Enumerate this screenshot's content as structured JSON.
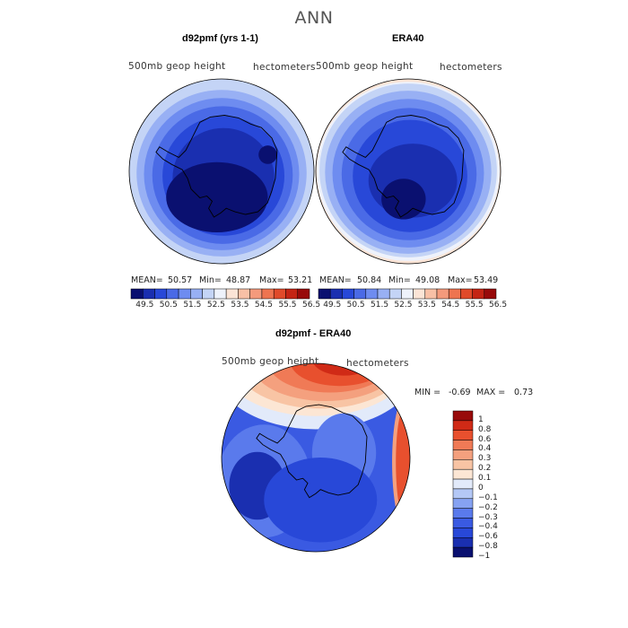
{
  "page": {
    "title": "ANN"
  },
  "chart_data": [
    {
      "type": "heatmap",
      "title": "d92pmf (yrs 1-1)",
      "left_label": "500mb geop height",
      "right_label": "hectometers",
      "stats": {
        "mean_label": "MEAN=",
        "mean": "50.57",
        "min_label": "Min=",
        "min": "48.87",
        "max_label": "Max=",
        "max": "53.21"
      },
      "colorbar_ticks": [
        "49.5",
        "50.5",
        "51.5",
        "52.5",
        "53.5",
        "54.5",
        "55.5",
        "56.5"
      ]
    },
    {
      "type": "heatmap",
      "title": "ERA40",
      "left_label": "500mb geop height",
      "right_label": "hectometers",
      "stats": {
        "mean_label": "MEAN=",
        "mean": "50.84",
        "min_label": "Min=",
        "min": "49.08",
        "max_label": "Max=",
        "max": "53.49"
      },
      "colorbar_ticks": [
        "49.5",
        "50.5",
        "51.5",
        "52.5",
        "53.5",
        "54.5",
        "55.5",
        "56.5"
      ]
    },
    {
      "type": "heatmap",
      "title": "d92pmf - ERA40",
      "left_label": "500mb geop height",
      "right_label": "hectometers",
      "stats": {
        "min_label": "MIN =",
        "min": "-0.69",
        "max_label": "MAX =",
        "max": "0.73"
      },
      "colorbar_ticks": [
        "1",
        "0.8",
        "0.6",
        "0.4",
        "0.3",
        "0.2",
        "0.1",
        "0",
        "−0.1",
        "−0.2",
        "−0.3",
        "−0.4",
        "−0.6",
        "−0.8",
        "−1"
      ]
    }
  ],
  "palette": {
    "abs_scale": [
      "#0a1070",
      "#1a2fb0",
      "#2848d8",
      "#4a6ae6",
      "#6e8cf0",
      "#98b0f4",
      "#c4d4f6",
      "#eef2fb",
      "#fbe4d6",
      "#f8c0a6",
      "#f49a7c",
      "#ee7450",
      "#e04a2a",
      "#c42414",
      "#980a0a"
    ],
    "diff_scale": [
      "#0a1070",
      "#1a2fb0",
      "#2848d8",
      "#3a5ae2",
      "#5a7aec",
      "#86a2f2",
      "#b4c8f6",
      "#e2eafa",
      "#fce6d4",
      "#f8c4a4",
      "#f4a07e",
      "#f07a56",
      "#e8502e",
      "#d02a16",
      "#980a0a"
    ],
    "background": "#ffffff"
  }
}
